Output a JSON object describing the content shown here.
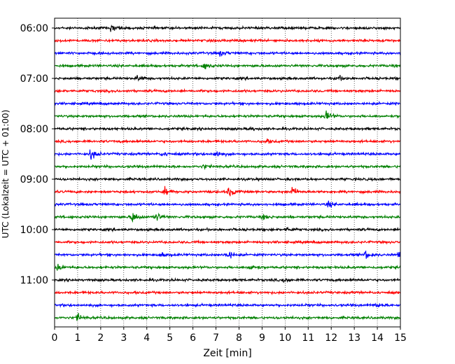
{
  "chart_data": {
    "type": "line",
    "title": "",
    "xlabel": "Zeit  [min]",
    "ylabel": "UTC (Lokalzeit = UTC + 01:00)",
    "xlim": [
      0,
      15
    ],
    "x_ticks": [
      0,
      1,
      2,
      3,
      4,
      5,
      6,
      7,
      8,
      9,
      10,
      11,
      12,
      13,
      14,
      15
    ],
    "y_ticks": [
      "06:00",
      "07:00",
      "08:00",
      "09:00",
      "10:00",
      "11:00"
    ],
    "grid": "vertical dotted",
    "trace_colors": [
      "#000000",
      "#ff0000",
      "#0000ff",
      "#008000"
    ],
    "traces": [
      {
        "start": "06:00",
        "color": "#000000",
        "events": [
          [
            2.5,
            0.9
          ]
        ]
      },
      {
        "start": "06:15",
        "color": "#ff0000",
        "events": []
      },
      {
        "start": "06:30",
        "color": "#0000ff",
        "events": [
          [
            7.2,
            0.6
          ]
        ]
      },
      {
        "start": "06:45",
        "color": "#008000",
        "events": [
          [
            6.5,
            0.8
          ]
        ]
      },
      {
        "start": "07:00",
        "color": "#000000",
        "events": [
          [
            3.6,
            0.6
          ],
          [
            12.3,
            0.6
          ]
        ]
      },
      {
        "start": "07:15",
        "color": "#ff0000",
        "events": []
      },
      {
        "start": "07:30",
        "color": "#0000ff",
        "events": []
      },
      {
        "start": "07:45",
        "color": "#008000",
        "events": [
          [
            11.8,
            1.2
          ]
        ]
      },
      {
        "start": "08:00",
        "color": "#000000",
        "events": [
          [
            8.5,
            0.5
          ]
        ]
      },
      {
        "start": "08:15",
        "color": "#ff0000",
        "events": [
          [
            9.2,
            0.5
          ]
        ]
      },
      {
        "start": "08:30",
        "color": "#0000ff",
        "events": [
          [
            1.6,
            1.4
          ],
          [
            7.0,
            1.0
          ],
          [
            4.7,
            0.5
          ]
        ]
      },
      {
        "start": "08:45",
        "color": "#008000",
        "events": [
          [
            6.5,
            0.5
          ]
        ]
      },
      {
        "start": "09:00",
        "color": "#000000",
        "events": []
      },
      {
        "start": "09:15",
        "color": "#ff0000",
        "events": [
          [
            4.8,
            1.0
          ],
          [
            7.6,
            1.2
          ],
          [
            10.3,
            1.2
          ]
        ]
      },
      {
        "start": "09:30",
        "color": "#0000ff",
        "events": [
          [
            11.9,
            0.7
          ]
        ]
      },
      {
        "start": "09:45",
        "color": "#008000",
        "events": [
          [
            3.4,
            1.5
          ],
          [
            4.4,
            1.3
          ],
          [
            9.1,
            0.5
          ]
        ]
      },
      {
        "start": "10:00",
        "color": "#000000",
        "events": [
          [
            10.1,
            0.5
          ]
        ]
      },
      {
        "start": "10:15",
        "color": "#ff0000",
        "events": []
      },
      {
        "start": "10:30",
        "color": "#0000ff",
        "events": [
          [
            7.5,
            1.2
          ],
          [
            13.5,
            1.1
          ],
          [
            15.0,
            1.3
          ],
          [
            4.6,
            0.6
          ]
        ]
      },
      {
        "start": "10:45",
        "color": "#008000",
        "events": [
          [
            0.2,
            1.0
          ],
          [
            8.5,
            0.8
          ]
        ]
      },
      {
        "start": "11:00",
        "color": "#000000",
        "events": [
          [
            10.0,
            0.6
          ]
        ]
      },
      {
        "start": "11:15",
        "color": "#ff0000",
        "events": []
      },
      {
        "start": "11:30",
        "color": "#0000ff",
        "events": [
          [
            14.0,
            0.5
          ]
        ]
      },
      {
        "start": "11:45",
        "color": "#008000",
        "events": [
          [
            1.0,
            1.0
          ]
        ]
      }
    ]
  }
}
